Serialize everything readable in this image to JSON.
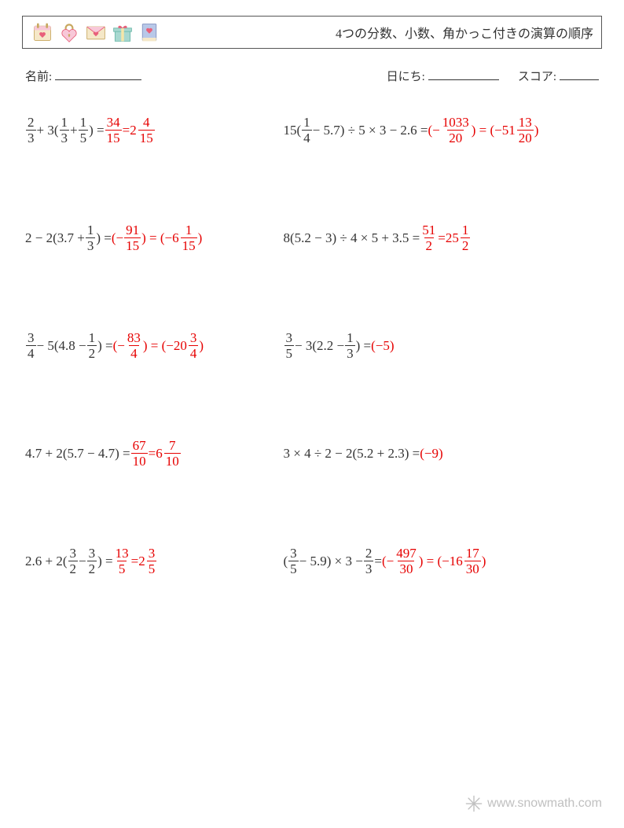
{
  "colors": {
    "text": "#333333",
    "answer": "#e60000",
    "border": "#555555",
    "watermark": "#c0c0c0",
    "icon_pink": "#f8c8d8",
    "icon_heart": "#e8607a",
    "icon_yellow": "#f5e6a8",
    "icon_teal": "#a8d8d0",
    "icon_blue": "#b8c8e8",
    "icon_cream": "#f5e8c8"
  },
  "header": {
    "title": "4つの分数、小数、角かっこ付きの演算の順序",
    "icons": [
      "calendar-heart",
      "heart-lock",
      "love-letter",
      "gift-heart",
      "book-heart"
    ]
  },
  "labels": {
    "name": "名前:",
    "date": "日にち:",
    "score": "スコア:"
  },
  "problems": [
    [
      {
        "expr": [
          {
            "t": "frac",
            "n": "2",
            "d": "3"
          },
          {
            "t": "str",
            "v": " + 3("
          },
          {
            "t": "frac",
            "n": "1",
            "d": "3"
          },
          {
            "t": "str",
            "v": " + "
          },
          {
            "t": "frac",
            "n": "1",
            "d": "5"
          },
          {
            "t": "str",
            "v": ") = "
          }
        ],
        "ans": [
          {
            "t": "frac",
            "n": "34",
            "d": "15"
          },
          {
            "t": "str",
            "v": " = "
          },
          {
            "t": "mixed",
            "w": "2",
            "n": "4",
            "d": "15"
          }
        ]
      },
      {
        "expr": [
          {
            "t": "str",
            "v": "15("
          },
          {
            "t": "frac",
            "n": "1",
            "d": "4"
          },
          {
            "t": "str",
            "v": " − 5.7) ÷ 5 × 3 − 2.6 = "
          }
        ],
        "ans": [
          {
            "t": "str",
            "v": "(−"
          },
          {
            "t": "frac",
            "n": "1033",
            "d": "20"
          },
          {
            "t": "str",
            "v": ") = (−"
          },
          {
            "t": "mixed",
            "w": "51",
            "n": "13",
            "d": "20"
          },
          {
            "t": "str",
            "v": ")"
          }
        ]
      }
    ],
    [
      {
        "expr": [
          {
            "t": "str",
            "v": "2 − 2(3.7 + "
          },
          {
            "t": "frac",
            "n": "1",
            "d": "3"
          },
          {
            "t": "str",
            "v": ") = "
          }
        ],
        "ans": [
          {
            "t": "str",
            "v": "(−"
          },
          {
            "t": "frac",
            "n": "91",
            "d": "15"
          },
          {
            "t": "str",
            "v": ") = (−"
          },
          {
            "t": "mixed",
            "w": "6",
            "n": "1",
            "d": "15"
          },
          {
            "t": "str",
            "v": ")"
          }
        ]
      },
      {
        "expr": [
          {
            "t": "str",
            "v": "8(5.2 − 3) ÷ 4 × 5 + 3.5 = "
          }
        ],
        "ans": [
          {
            "t": "frac",
            "n": "51",
            "d": "2"
          },
          {
            "t": "str",
            "v": " = "
          },
          {
            "t": "mixed",
            "w": "25",
            "n": "1",
            "d": "2"
          }
        ]
      }
    ],
    [
      {
        "expr": [
          {
            "t": "frac",
            "n": "3",
            "d": "4"
          },
          {
            "t": "str",
            "v": " − 5(4.8 − "
          },
          {
            "t": "frac",
            "n": "1",
            "d": "2"
          },
          {
            "t": "str",
            "v": ") = "
          }
        ],
        "ans": [
          {
            "t": "str",
            "v": "(−"
          },
          {
            "t": "frac",
            "n": "83",
            "d": "4"
          },
          {
            "t": "str",
            "v": ") = (−"
          },
          {
            "t": "mixed",
            "w": "20",
            "n": "3",
            "d": "4"
          },
          {
            "t": "str",
            "v": ")"
          }
        ]
      },
      {
        "expr": [
          {
            "t": "frac",
            "n": "3",
            "d": "5"
          },
          {
            "t": "str",
            "v": " − 3(2.2 − "
          },
          {
            "t": "frac",
            "n": "1",
            "d": "3"
          },
          {
            "t": "str",
            "v": ") = "
          }
        ],
        "ans": [
          {
            "t": "str",
            "v": "(−5)"
          }
        ]
      }
    ],
    [
      {
        "expr": [
          {
            "t": "str",
            "v": "4.7 + 2(5.7 − 4.7) = "
          }
        ],
        "ans": [
          {
            "t": "frac",
            "n": "67",
            "d": "10"
          },
          {
            "t": "str",
            "v": " = "
          },
          {
            "t": "mixed",
            "w": "6",
            "n": "7",
            "d": "10"
          }
        ]
      },
      {
        "expr": [
          {
            "t": "str",
            "v": "3 × 4 ÷ 2 − 2(5.2 + 2.3) = "
          }
        ],
        "ans": [
          {
            "t": "str",
            "v": "(−9)"
          }
        ]
      }
    ],
    [
      {
        "expr": [
          {
            "t": "str",
            "v": "2.6 + 2("
          },
          {
            "t": "frac",
            "n": "3",
            "d": "2"
          },
          {
            "t": "str",
            "v": " − "
          },
          {
            "t": "frac",
            "n": "3",
            "d": "2"
          },
          {
            "t": "str",
            "v": ") = "
          }
        ],
        "ans": [
          {
            "t": "frac",
            "n": "13",
            "d": "5"
          },
          {
            "t": "str",
            "v": " = "
          },
          {
            "t": "mixed",
            "w": "2",
            "n": "3",
            "d": "5"
          }
        ]
      },
      {
        "expr": [
          {
            "t": "str",
            "v": "("
          },
          {
            "t": "frac",
            "n": "3",
            "d": "5"
          },
          {
            "t": "str",
            "v": " − 5.9) × 3 − "
          },
          {
            "t": "frac",
            "n": "2",
            "d": "3"
          },
          {
            "t": "str",
            "v": " = "
          }
        ],
        "ans": [
          {
            "t": "str",
            "v": "(−"
          },
          {
            "t": "frac",
            "n": "497",
            "d": "30"
          },
          {
            "t": "str",
            "v": ") = (−"
          },
          {
            "t": "mixed",
            "w": "16",
            "n": "17",
            "d": "30"
          },
          {
            "t": "str",
            "v": ")"
          }
        ]
      }
    ]
  ],
  "watermark": {
    "text": "www.snowmath.com"
  }
}
